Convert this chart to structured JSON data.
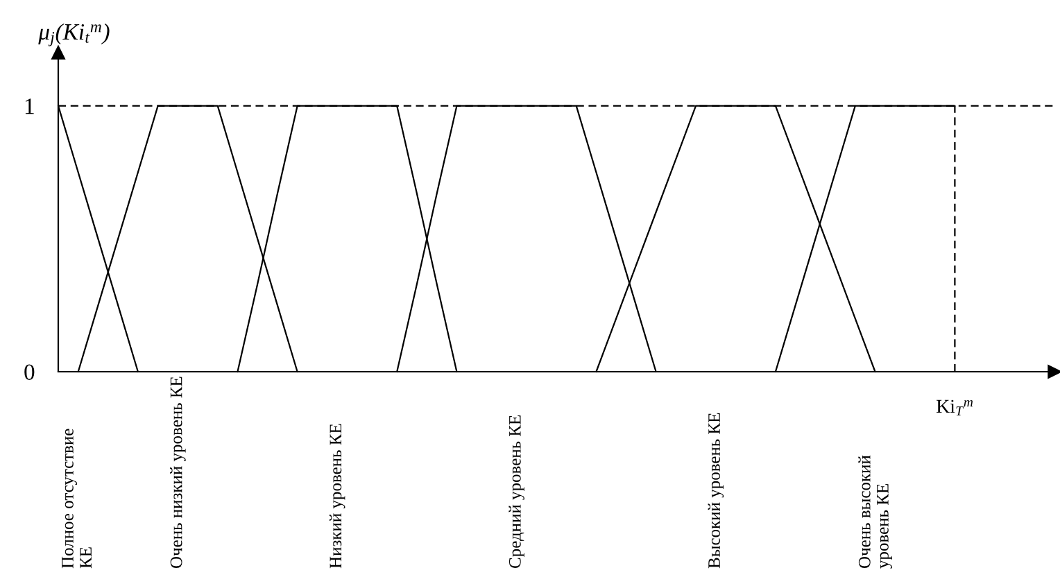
{
  "chart_data": {
    "type": "line",
    "ylabel": "μ$_{j}$(Ki$_{t}$$^{m}$)",
    "categories": [
      null,
      "Полное отсутствие\nКЕ",
      null,
      null,
      null,
      null,
      "Очень низкий уровень КЕ",
      null,
      null,
      null,
      null,
      null,
      null,
      null,
      "Низкий уровень КЕ",
      null,
      null,
      null,
      null,
      null,
      null,
      null,
      null,
      "Средний уровень КЕ",
      null,
      null,
      null,
      null,
      null,
      null,
      null,
      null,
      null,
      "Высокий уровень КЕ",
      null,
      null,
      null,
      null,
      null,
      null,
      null,
      "Очень высокий\nуровень КЕ",
      null,
      null,
      null,
      "Ki$_{T}$$^{m}$",
      null,
      null,
      null,
      null
    ],
    "ylim": [
      0,
      1.2
    ],
    "yticks": [
      0,
      1
    ],
    "series": [
      {
        "color": "#000000",
        "values": [
          1,
          0.75,
          0.5,
          0.25,
          0,
          null,
          null,
          null,
          null,
          null,
          null,
          null,
          null,
          null,
          null,
          null,
          null,
          null,
          null,
          null,
          null,
          null,
          null,
          null,
          null,
          null,
          null,
          null,
          null,
          null,
          null,
          null,
          null,
          null,
          null,
          null,
          null,
          null,
          null,
          null,
          null,
          null,
          null,
          null,
          null,
          null,
          null,
          null,
          null,
          null
        ]
      },
      {
        "color": "#000000",
        "values": [
          null,
          0,
          0.25,
          0.5,
          0.75,
          1,
          1,
          1,
          1,
          0.75,
          0.5,
          0.25,
          0,
          null,
          null,
          null,
          null,
          null,
          null,
          null,
          null,
          null,
          null,
          null,
          null,
          null,
          null,
          null,
          null,
          null,
          null,
          null,
          null,
          null,
          null,
          null,
          null,
          null,
          null,
          null,
          null,
          null,
          null,
          null,
          null,
          null,
          null,
          null,
          null,
          null
        ]
      },
      {
        "color": "#000000",
        "values": [
          null,
          null,
          null,
          null,
          null,
          null,
          null,
          null,
          null,
          0,
          0.33,
          0.67,
          1,
          1,
          1,
          1,
          1,
          1,
          0.67,
          0.33,
          0,
          null,
          null,
          null,
          null,
          null,
          null,
          null,
          null,
          null,
          null,
          null,
          null,
          null,
          null,
          null,
          null,
          null,
          null,
          null,
          null,
          null,
          null,
          null,
          null,
          null,
          null,
          null,
          null,
          null
        ]
      },
      {
        "color": "#000000",
        "values": [
          null,
          null,
          null,
          null,
          null,
          null,
          null,
          null,
          null,
          null,
          null,
          null,
          null,
          null,
          null,
          null,
          null,
          0,
          0.33,
          0.67,
          1,
          1,
          1,
          1,
          1,
          1,
          1,
          0.75,
          0.5,
          0.25,
          0,
          null,
          null,
          null,
          null,
          null,
          null,
          null,
          null,
          null,
          null,
          null,
          null,
          null,
          null,
          null,
          null,
          null,
          null,
          null
        ]
      },
      {
        "color": "#000000",
        "values": [
          null,
          null,
          null,
          null,
          null,
          null,
          null,
          null,
          null,
          null,
          null,
          null,
          null,
          null,
          null,
          null,
          null,
          null,
          null,
          null,
          null,
          null,
          null,
          null,
          null,
          null,
          null,
          0,
          0.2,
          0.4,
          0.6,
          0.8,
          1,
          1,
          1,
          1,
          1,
          0.8,
          0.6,
          0.4,
          0.2,
          0,
          null,
          null,
          null,
          null,
          null,
          null,
          null,
          null
        ]
      },
      {
        "color": "#000000",
        "values": [
          null,
          null,
          null,
          null,
          null,
          null,
          null,
          null,
          null,
          null,
          null,
          null,
          null,
          null,
          null,
          null,
          null,
          null,
          null,
          null,
          null,
          null,
          null,
          null,
          null,
          null,
          null,
          null,
          null,
          null,
          null,
          null,
          null,
          null,
          null,
          null,
          0,
          0.25,
          0.5,
          0.75,
          1,
          1,
          1,
          1,
          1,
          1,
          null,
          null,
          null,
          null
        ]
      }
    ],
    "ref_lines": [
      {
        "axis": "y",
        "value": 1,
        "line_style": "dashed",
        "color": "#000000"
      },
      {
        "axis": "x",
        "value": "Ki$_{T}$$^{m}$",
        "line_style": "dashed",
        "color": "#000000"
      }
    ],
    "line_style": "solid"
  }
}
